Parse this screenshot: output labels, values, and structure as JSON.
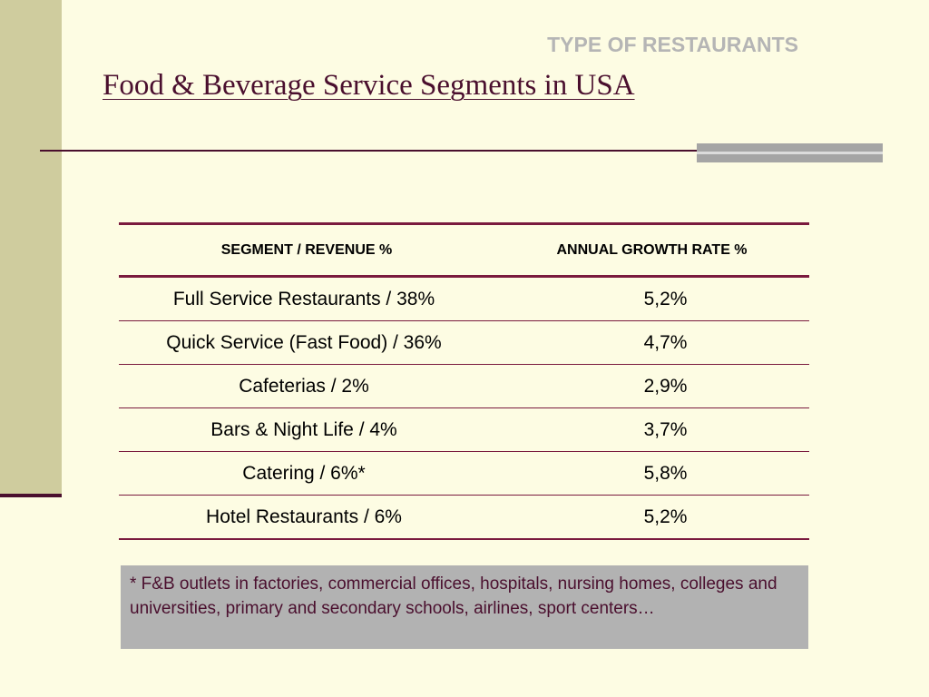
{
  "slide": {
    "section_label": "TYPE OF RESTAURANTS",
    "title": "Food & Beverage Service Segments in USA"
  },
  "table": {
    "headers": [
      "SEGMENT / REVENUE %",
      "ANNUAL GROWTH RATE %"
    ],
    "rows": [
      {
        "segment": "Full Service Restaurants / 38%",
        "growth": "5,2%"
      },
      {
        "segment": "Quick Service (Fast Food) / 36%",
        "growth": "4,7%"
      },
      {
        "segment": "Cafeterias / 2%",
        "growth": "2,9%"
      },
      {
        "segment": "Bars & Night Life / 4%",
        "growth": "3,7%"
      },
      {
        "segment": "Catering / 6%*",
        "growth": "5,8%"
      },
      {
        "segment": "Hotel Restaurants / 6%",
        "growth": "5,2%"
      }
    ]
  },
  "footnote": "* F&B outlets in factories, commercial offices, hospitals, nursing homes, colleges and universities, primary and secondary schools, airlines, sport centers…",
  "colors": {
    "background": "#fdfce3",
    "accent": "#4a0f2e",
    "sidebar": "#cfcc9e",
    "note_background": "#b2b2b2"
  }
}
